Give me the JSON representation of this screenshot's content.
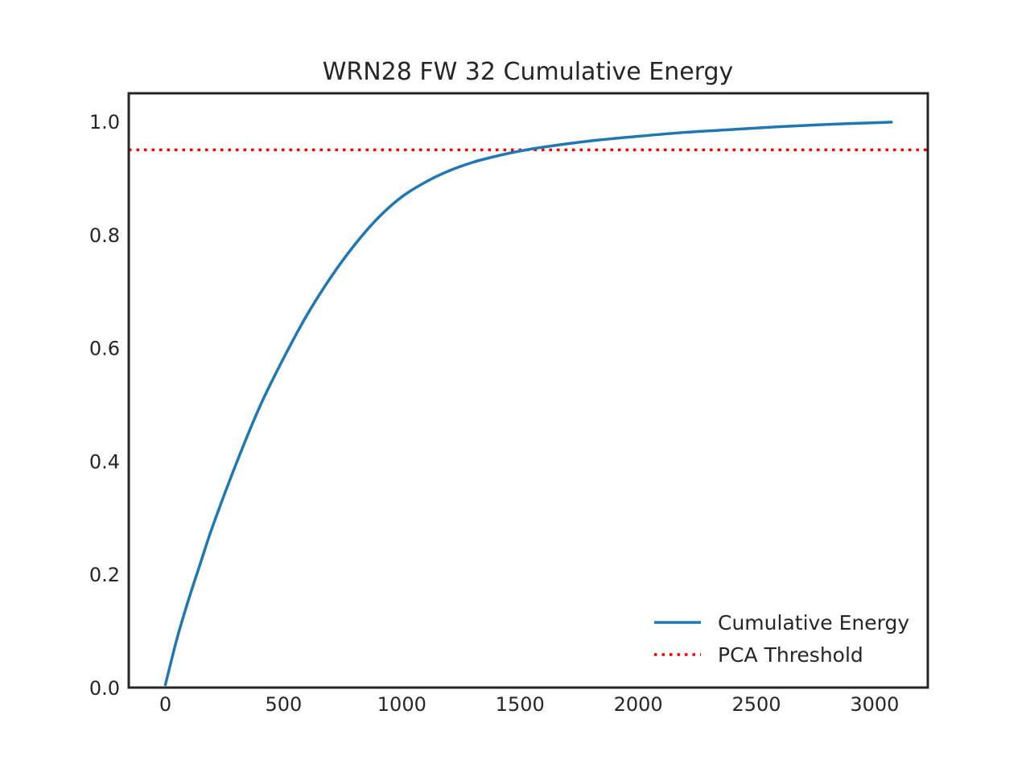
{
  "chart_data": {
    "type": "line",
    "title": "WRN28 FW 32 Cumulative Energy",
    "xlabel": "",
    "ylabel": "",
    "xlim": [
      -155,
      3225
    ],
    "ylim": [
      0.0,
      1.05
    ],
    "x_ticks": [
      0,
      500,
      1000,
      1500,
      2000,
      2500,
      3000
    ],
    "x_tick_labels": [
      "0",
      "500",
      "1000",
      "1500",
      "2000",
      "2500",
      "3000"
    ],
    "y_ticks": [
      0.0,
      0.2,
      0.4,
      0.6,
      0.8,
      1.0
    ],
    "y_tick_labels": [
      "0.0",
      "0.2",
      "0.4",
      "0.6",
      "0.8",
      "1.0"
    ],
    "grid": false,
    "legend_position": "lower-right",
    "series": [
      {
        "name": "Cumulative Energy",
        "color": "#1f77b4",
        "style": "solid",
        "x": [
          0,
          50,
          100,
          150,
          200,
          300,
          400,
          500,
          600,
          700,
          800,
          900,
          1000,
          1100,
          1200,
          1300,
          1400,
          1500,
          1600,
          1800,
          2000,
          2200,
          2400,
          2600,
          2800,
          3000,
          3071
        ],
        "y": [
          0.005,
          0.088,
          0.158,
          0.222,
          0.285,
          0.396,
          0.497,
          0.582,
          0.659,
          0.725,
          0.782,
          0.83,
          0.867,
          0.893,
          0.913,
          0.928,
          0.939,
          0.948,
          0.955,
          0.966,
          0.974,
          0.981,
          0.986,
          0.991,
          0.995,
          0.998,
          0.999
        ]
      },
      {
        "name": "PCA Threshold",
        "color": "#ff0000",
        "style": "dotted",
        "y_constant": 0.95
      }
    ]
  }
}
